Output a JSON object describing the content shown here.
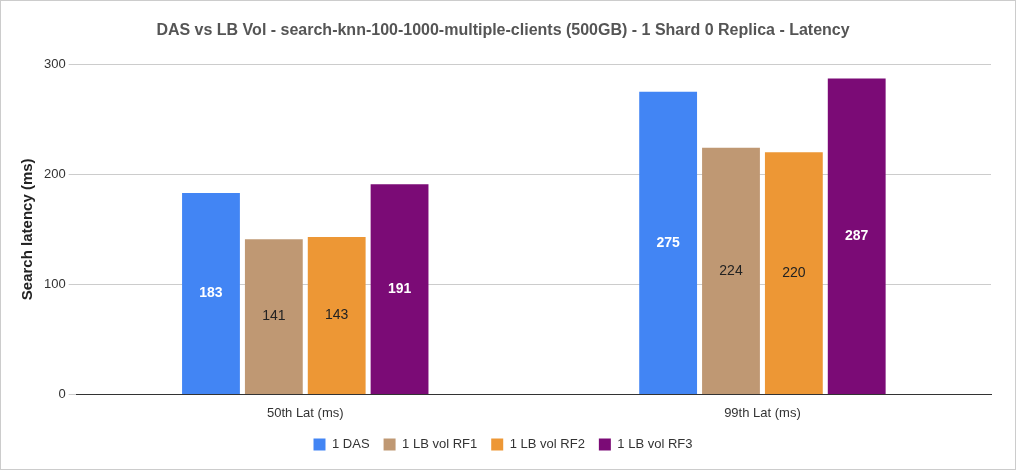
{
  "chart_data": {
    "type": "bar",
    "title": "DAS vs LB Vol - search-knn-100-1000-multiple-clients (500GB) - 1 Shard 0 Replica - Latency",
    "y_label": "Search latency (ms)",
    "categories": [
      "50th Lat (ms)",
      "99th Lat (ms)"
    ],
    "series": [
      {
        "name": "1 DAS",
        "color": "#4285f4",
        "values": [
          183,
          275
        ]
      },
      {
        "name": "1 LB vol RF1",
        "color": "#bf9873",
        "values": [
          141,
          224
        ]
      },
      {
        "name": "1 LB vol RF2",
        "color": "#ed9735",
        "values": [
          143,
          220
        ]
      },
      {
        "name": "1 LB vol RF3",
        "color": "#7b0b76",
        "values": [
          191,
          287
        ]
      }
    ],
    "ylim": [
      0,
      300
    ],
    "yticks": [
      0,
      100,
      200,
      300
    ],
    "grid": true,
    "legend": "bottom",
    "data_labels": true
  }
}
